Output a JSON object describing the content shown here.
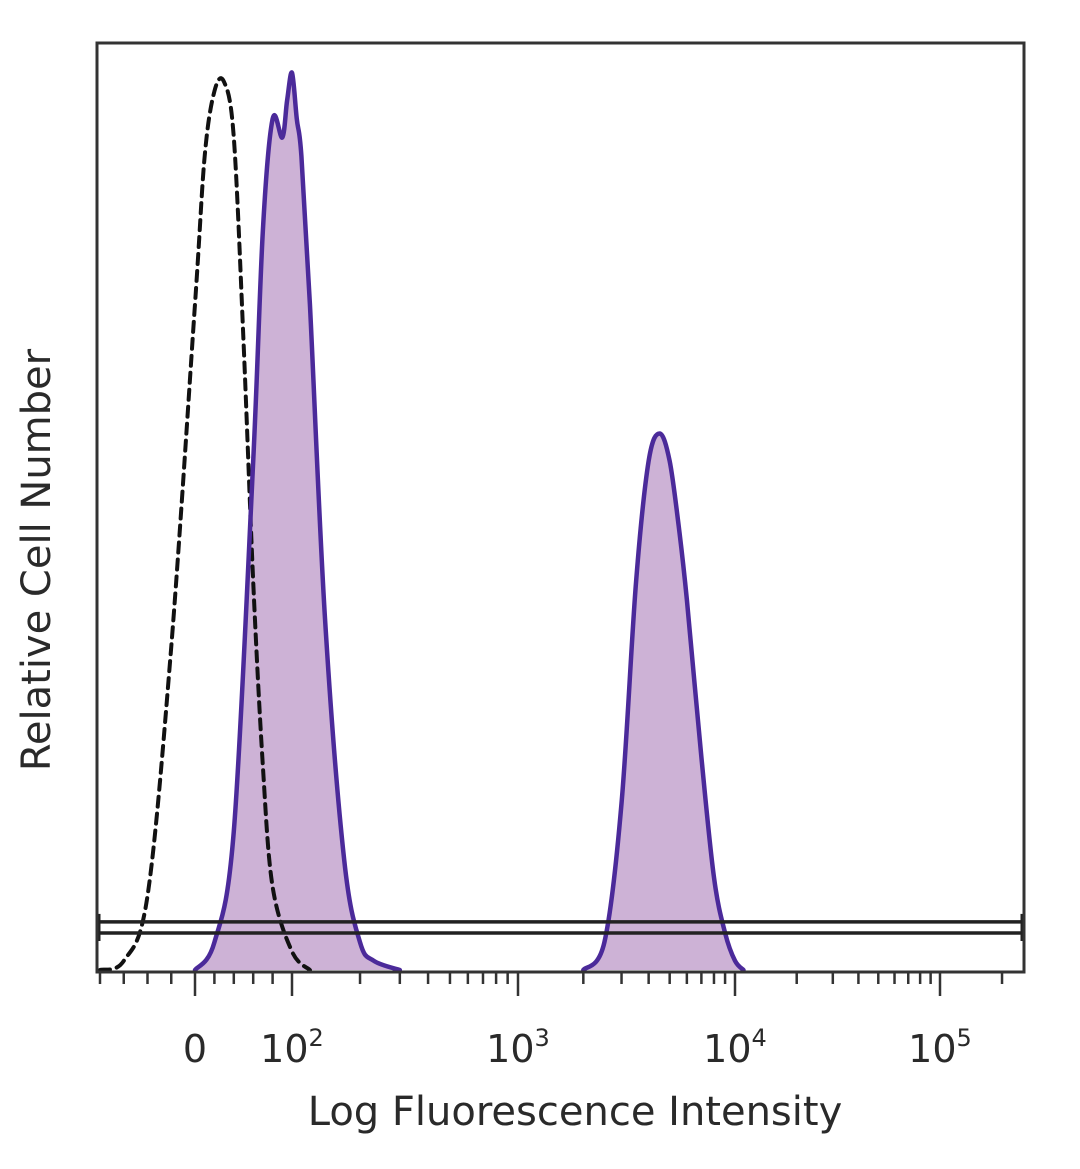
{
  "chart_data": {
    "type": "area",
    "title": "",
    "xlabel": "Log Fluorescence Intensity",
    "ylabel": "Relative Cell Number",
    "x_scale": "biexponential",
    "xlim": [
      -80,
      250000
    ],
    "ylim": [
      0,
      1
    ],
    "x_ticks": [
      {
        "value": 0,
        "base": "0",
        "exp": ""
      },
      {
        "value": 100,
        "base": "10",
        "exp": "2"
      },
      {
        "value": 1000,
        "base": "10",
        "exp": "3"
      },
      {
        "value": 10000,
        "base": "10",
        "exp": "4"
      },
      {
        "value": 100000,
        "base": "10",
        "exp": "5"
      }
    ],
    "baseline_bar": {
      "y_low": 0.04,
      "y_high": 0.052
    },
    "series": [
      {
        "style": "dashed",
        "color": "#111111",
        "fill": "none",
        "x": [
          -80,
          -60,
          -40,
          -20,
          0,
          10,
          20,
          30,
          40,
          50,
          60,
          70,
          80,
          100,
          120
        ],
        "y": [
          0.0,
          0.01,
          0.08,
          0.35,
          0.72,
          0.88,
          0.95,
          0.96,
          0.9,
          0.68,
          0.42,
          0.22,
          0.09,
          0.02,
          0.0
        ]
      },
      {
        "style": "solid",
        "color": "#4b2a9a",
        "fill": "#cdb2d6",
        "x": [
          0,
          20,
          40,
          60,
          70,
          80,
          90,
          95,
          100,
          105,
          110,
          120,
          140,
          170,
          200,
          230,
          300
        ],
        "y": [
          0.0,
          0.03,
          0.15,
          0.55,
          0.8,
          0.92,
          0.9,
          0.94,
          0.97,
          0.92,
          0.88,
          0.72,
          0.38,
          0.12,
          0.03,
          0.01,
          0.0
        ]
      },
      {
        "style": "solid",
        "color": "#4b2a9a",
        "fill": "#cdb2d6",
        "x": [
          2000,
          2500,
          3000,
          3500,
          4000,
          4500,
          5000,
          5500,
          6000,
          7000,
          8000,
          9000,
          10000,
          11000
        ],
        "y": [
          0.0,
          0.03,
          0.18,
          0.42,
          0.55,
          0.58,
          0.55,
          0.48,
          0.4,
          0.23,
          0.1,
          0.04,
          0.01,
          0.0
        ]
      }
    ]
  }
}
